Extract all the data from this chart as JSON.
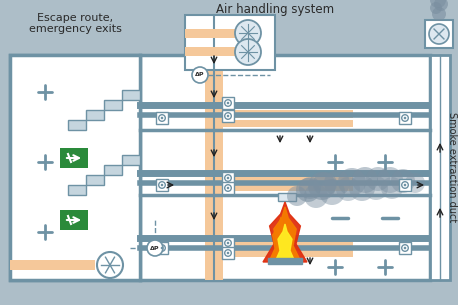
{
  "bg_color": "#adbec8",
  "wall_color": "#6e92a4",
  "room_fill": "#ffffff",
  "duct_fill": "#f5c89a",
  "title1": "Escape route,",
  "title2": "emergency exits",
  "title3": "Air handling system",
  "title4": "Smoke extraction duct",
  "text_color": "#2a2a2a",
  "green_sign": "#2a8a3a",
  "plus_color": "#6e92a4",
  "smoke_color": "#7a8fa0",
  "fire_red": "#e03010",
  "fire_orange": "#f57c00",
  "fire_yellow": "#ffee22",
  "stair_fill": "#c5d5de",
  "sensor_fill": "#e8f0f5",
  "ahu_fill": "#dde8f0",
  "detector_fill": "#dde8f0"
}
